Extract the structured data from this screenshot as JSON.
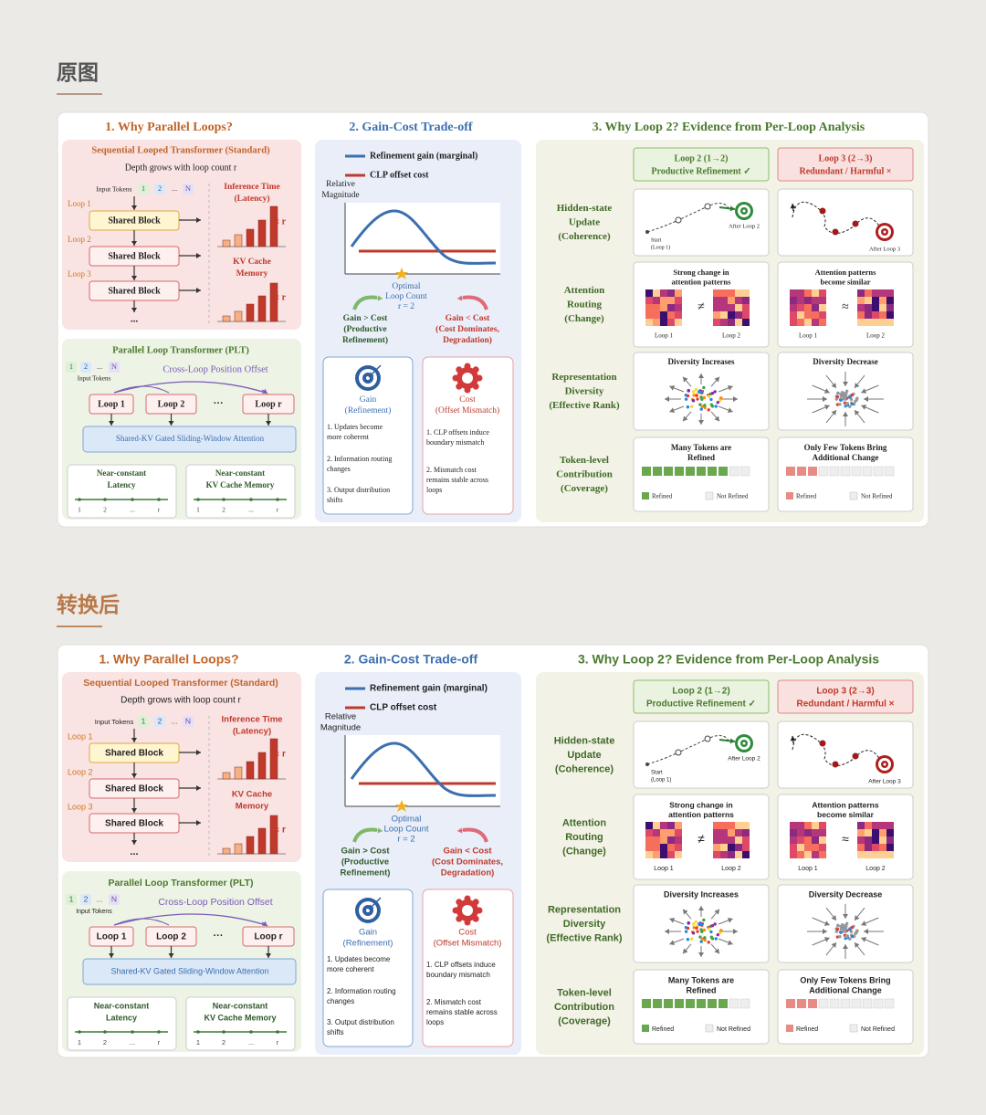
{
  "page": {
    "original_label": "原图",
    "converted_label": "转换后"
  },
  "figure": {
    "section1": {
      "title": "1. Why Parallel Loops?",
      "sequential": {
        "title": "Sequential Looped Transformer (Standard)",
        "subtitle": "Depth grows with loop count r",
        "input_tokens": "Input Tokens",
        "tokens": [
          "1",
          "2",
          "...",
          "N"
        ],
        "loops": [
          "Loop 1",
          "Loop 2",
          "Loop 3"
        ],
        "block": "Shared Block",
        "ellipsis": "...",
        "inference": [
          "Inference Time",
          "(Latency)"
        ],
        "kv": [
          "KV Cache",
          "Memory"
        ],
        "prop": "∝ r"
      },
      "parallel": {
        "title": "Parallel Loop Transformer (PLT)",
        "input_tokens": "Input Tokens",
        "tokens": [
          "1",
          "2",
          "...",
          "N"
        ],
        "offset": "Cross-Loop Position Offset",
        "loops": [
          "Loop 1",
          "Loop 2",
          "···",
          "Loop r"
        ],
        "attention": "Shared-KV Gated Sliding-Window Attention",
        "latency": [
          "Near-constant",
          "Latency"
        ],
        "memory": [
          "Near-constant",
          "KV Cache Memory"
        ],
        "axis": [
          "1",
          "2",
          "...",
          "r"
        ]
      }
    },
    "section2": {
      "title": "2. Gain-Cost Trade-off",
      "legend": [
        "Refinement gain (marginal)",
        "CLP offset cost"
      ],
      "y_label": [
        "Relative",
        "Magnitude"
      ],
      "optimal": [
        "Optimal",
        "Loop Count",
        "r = 2"
      ],
      "gain": [
        "Gain > Cost",
        "(Productive",
        "Refinement)"
      ],
      "cost": [
        "Gain < Cost",
        "(Cost Dominates,",
        "Degradation)"
      ],
      "gain_card": {
        "title": [
          "Gain",
          "(Refinement)"
        ],
        "items": [
          [
            "1. Updates become",
            "more coherent"
          ],
          [
            "2. Information routing",
            "changes"
          ],
          [
            "3. Output distribution",
            "shifts"
          ]
        ]
      },
      "cost_card": {
        "title": [
          "Cost",
          "(Offset Mismatch)"
        ],
        "items": [
          [
            "1. CLP offsets induce",
            "boundary mismatch"
          ],
          [
            "2. Mismatch cost",
            "remains stable across",
            "loops"
          ]
        ]
      }
    },
    "section3": {
      "title": "3. Why Loop 2?  Evidence from Per-Loop Analysis",
      "loop2_header": [
        "Loop 2 (1→2)",
        "Productive Refinement ✓"
      ],
      "loop3_header": [
        "Loop 3 (2→3)",
        "Redundant / Harmful ×"
      ],
      "rows": [
        [
          "Hidden-state",
          "Update",
          "(Coherence)"
        ],
        [
          "Attention",
          "Routing",
          "(Change)"
        ],
        [
          "Representation",
          "Diversity",
          "(Effective Rank)"
        ],
        [
          "Token-level",
          "Contribution",
          "(Coverage)"
        ]
      ],
      "hidden": {
        "start": [
          "Start",
          "(Loop 1)"
        ],
        "after2": "After Loop 2",
        "after3": "After Loop 3"
      },
      "attention": {
        "loop2": [
          "Strong change in",
          "attention patterns"
        ],
        "loop3": [
          "Attention patterns",
          "become similar"
        ],
        "loop1_label": "Loop 1",
        "loop2_label": "Loop 2",
        "neq": "≠",
        "approx": "≈"
      },
      "diversity": {
        "loop2": "Diversity Increases",
        "loop3": "Diversity Decrease"
      },
      "tokens": {
        "loop2": [
          "Many Tokens are",
          "Refined"
        ],
        "loop3": [
          "Only Few Tokens Bring",
          "Additional Change"
        ],
        "refined": "Refined",
        "not_refined": "Not Refined"
      }
    }
  }
}
